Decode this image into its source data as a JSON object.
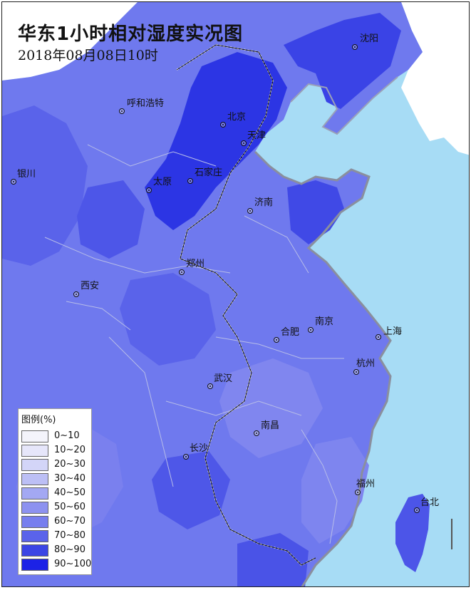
{
  "map": {
    "title": "华东1小时相对湿度实况图",
    "subtitle": "2018年08月08日10时",
    "colors": {
      "sea": "#a7dcf5",
      "foreign_land": "#ffffff",
      "humidity_base": "#6f79ee"
    }
  },
  "cities": [
    {
      "name": "沈阳"
    },
    {
      "name": "呼和浩特"
    },
    {
      "name": "北京"
    },
    {
      "name": "天津"
    },
    {
      "name": "银川"
    },
    {
      "name": "太原"
    },
    {
      "name": "石家庄"
    },
    {
      "name": "济南"
    },
    {
      "name": "郑州"
    },
    {
      "name": "西安"
    },
    {
      "name": "南京"
    },
    {
      "name": "合肥"
    },
    {
      "name": "上海"
    },
    {
      "name": "杭州"
    },
    {
      "name": "武汉"
    },
    {
      "name": "南昌"
    },
    {
      "name": "长沙"
    },
    {
      "name": "福州"
    },
    {
      "name": "台北"
    }
  ],
  "legend": {
    "title": "图例(%)",
    "items": [
      {
        "label": "0~10",
        "color": "#f4f4fb"
      },
      {
        "label": "10~20",
        "color": "#e6e6fa"
      },
      {
        "label": "20~30",
        "color": "#d3d5f8"
      },
      {
        "label": "30~40",
        "color": "#bcbff5"
      },
      {
        "label": "40~50",
        "color": "#a3a8f3"
      },
      {
        "label": "50~60",
        "color": "#8d92f0"
      },
      {
        "label": "60~70",
        "color": "#777eee"
      },
      {
        "label": "70~80",
        "color": "#5a63ea"
      },
      {
        "label": "80~90",
        "color": "#3b45e5"
      },
      {
        "label": "90~100",
        "color": "#1c22e6"
      }
    ]
  }
}
